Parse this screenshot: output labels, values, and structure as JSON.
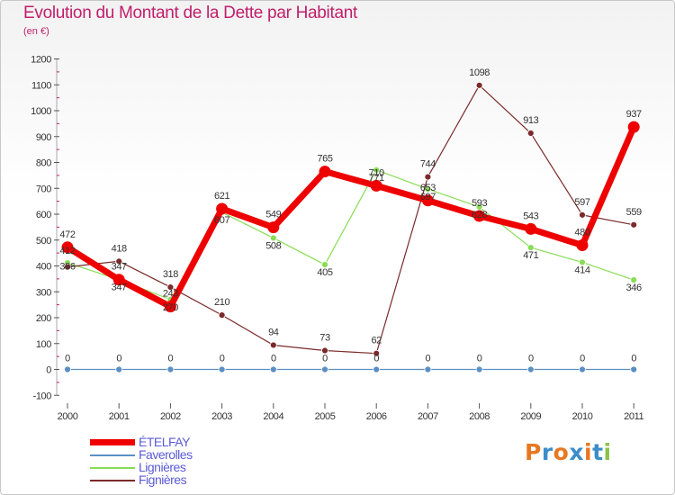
{
  "chart_data": {
    "type": "line",
    "title": "Evolution du Montant de la Dette par Habitant",
    "subtitle": "(en €)",
    "x": [
      "2000",
      "2001",
      "2002",
      "2003",
      "2004",
      "2005",
      "2006",
      "2007",
      "2008",
      "2009",
      "2010",
      "2011"
    ],
    "ylim": [
      -100,
      1200
    ],
    "yticks": [
      -100,
      0,
      100,
      200,
      300,
      400,
      500,
      600,
      700,
      800,
      900,
      1000,
      1100,
      1200
    ],
    "grid": false,
    "legend_position": "bottom-left",
    "series": [
      {
        "name": "ÉTELFAY",
        "color": "#ee0000",
        "values": [
          472,
          347,
          243,
          621,
          549,
          765,
          710,
          653,
          593,
          543,
          480,
          937
        ]
      },
      {
        "name": "Faverolles",
        "color": "#5a8fc4",
        "values": [
          0,
          0,
          0,
          0,
          0,
          0,
          0,
          0,
          0,
          0,
          0,
          0
        ]
      },
      {
        "name": "Lignières",
        "color": "#88dd55",
        "values": [
          412,
          347,
          270,
          607,
          508,
          405,
          771,
          697,
          628,
          471,
          414,
          346
        ]
      },
      {
        "name": "Fignières",
        "color": "#7a2a2a",
        "values": [
          396,
          418,
          318,
          210,
          94,
          73,
          62,
          744,
          1098,
          913,
          597,
          559
        ]
      }
    ]
  },
  "logo": {
    "text": "Proxiti",
    "colors": [
      "#e87722",
      "#3c8dc9",
      "#e87722",
      "#3c8dc9",
      "#e87722",
      "#3c8dc9",
      "#8bc34a"
    ]
  },
  "colors": {
    "title": "#c21e6b",
    "legend_text": "#5b5bd6",
    "axis": "#555555"
  }
}
